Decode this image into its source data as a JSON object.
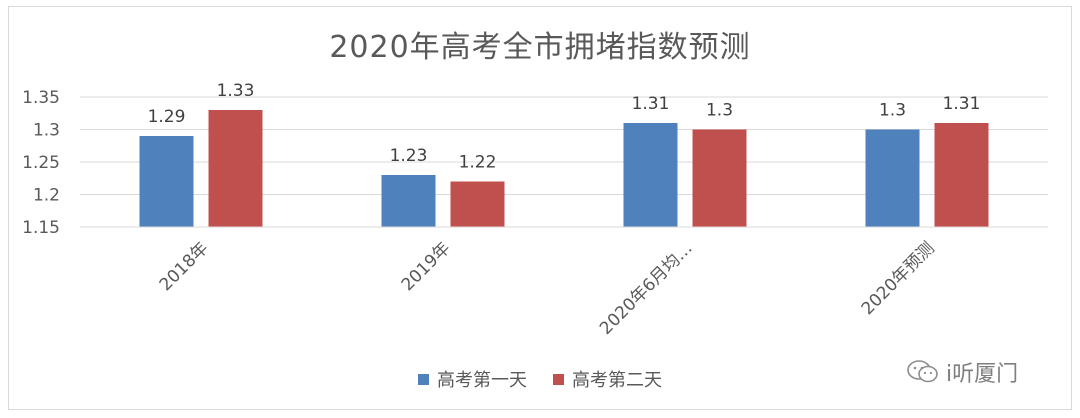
{
  "chart_data": {
    "type": "bar",
    "title": "2020年高考全市拥堵指数预测",
    "categories": [
      "2018年",
      "2019年",
      "2020年6月均…",
      "2020年预测"
    ],
    "series": [
      {
        "name": "高考第一天",
        "color": "#4f81bd",
        "values": [
          1.29,
          1.23,
          1.31,
          1.3
        ]
      },
      {
        "name": "高考第二天",
        "color": "#c0504d",
        "values": [
          1.33,
          1.22,
          1.3,
          1.31
        ]
      }
    ],
    "data_labels": [
      [
        "1.29",
        "1.23",
        "1.31",
        "1.3"
      ],
      [
        "1.33",
        "1.22",
        "1.3",
        "1.31"
      ]
    ],
    "ylim": [
      1.15,
      1.35
    ],
    "yticks": [
      "1.15",
      "1.2",
      "1.25",
      "1.3",
      "1.35"
    ],
    "grid": true,
    "legend_position": "bottom",
    "xlabel": "",
    "ylabel": ""
  },
  "watermark": {
    "text": "i听厦门",
    "icon": "wechat-logo-icon"
  }
}
